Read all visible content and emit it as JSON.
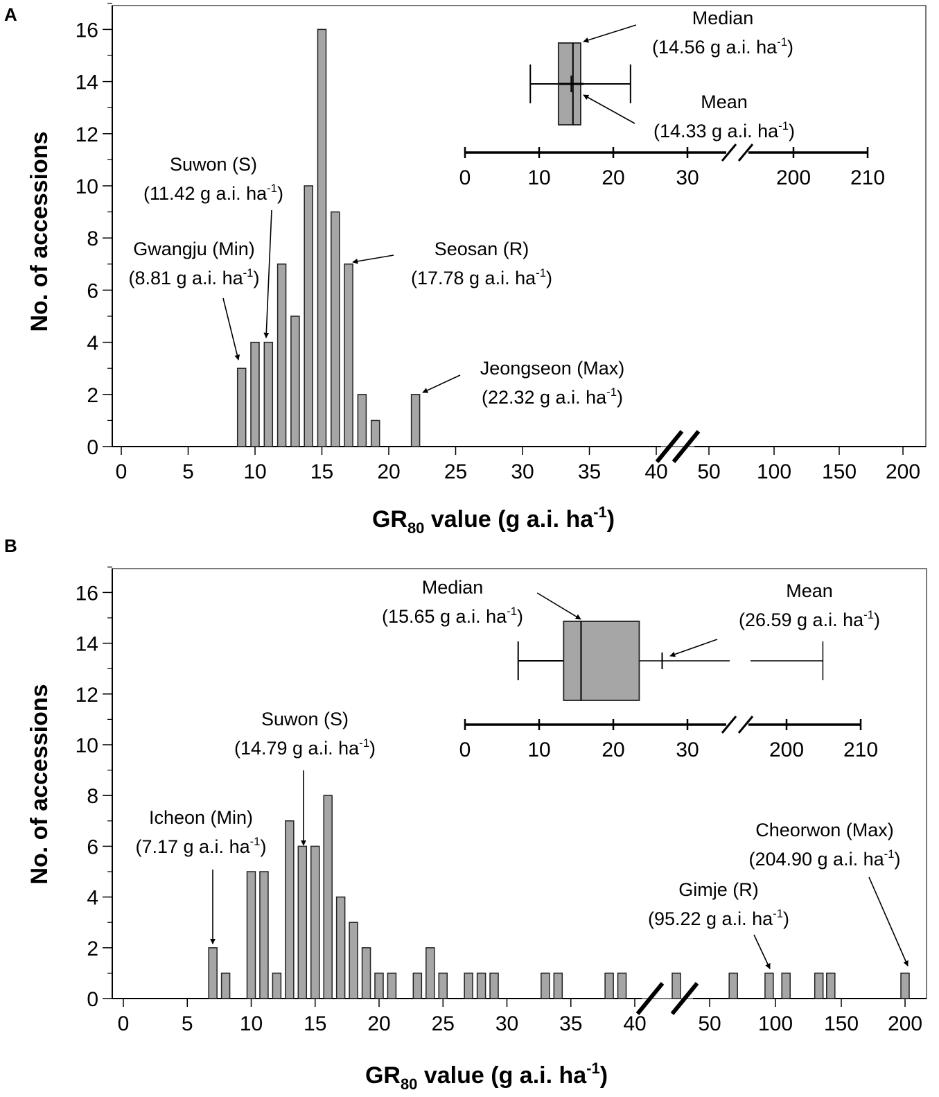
{
  "chart_data": [
    {
      "panel": "A",
      "type": "bar",
      "ylabel": "No. of accessions",
      "xlabel": {
        "base": "GR",
        "sub": "80",
        "rest": " value (g a.i. ha",
        "sup": "-1",
        "close": ")"
      },
      "ylim": [
        0,
        17
      ],
      "yticks": [
        0,
        2,
        4,
        6,
        8,
        10,
        12,
        14,
        16
      ],
      "xticks": [
        "0",
        "5",
        "10",
        "15",
        "20",
        "25",
        "30",
        "35",
        "40",
        "50",
        "100",
        "150",
        "200"
      ],
      "bars": [
        {
          "x": 9,
          "value": 3
        },
        {
          "x": 10,
          "value": 4
        },
        {
          "x": 11,
          "value": 4
        },
        {
          "x": 12,
          "value": 7
        },
        {
          "x": 13,
          "value": 5
        },
        {
          "x": 14,
          "value": 10
        },
        {
          "x": 15,
          "value": 16
        },
        {
          "x": 16,
          "value": 9
        },
        {
          "x": 17,
          "value": 7
        },
        {
          "x": 18,
          "value": 2
        },
        {
          "x": 19,
          "value": 1
        },
        {
          "x": 22,
          "value": 2
        }
      ],
      "annotations": [
        {
          "name": "Gwangju (Min)",
          "value": "(8.81 g a.i. ha",
          "sup": "-1",
          "close": ")"
        },
        {
          "name": "Suwon (S)",
          "value": "(11.42 g a.i. ha",
          "sup": "-1",
          "close": ")"
        },
        {
          "name": "Seosan (R)",
          "value": "(17.78 g a.i. ha",
          "sup": "-1",
          "close": ")"
        },
        {
          "name": "Jeongseon (Max)",
          "value": "(22.32 g a.i. ha",
          "sup": "-1",
          "close": ")"
        }
      ],
      "boxplot": {
        "min": 8.81,
        "q1": 12.6,
        "median": 14.56,
        "q3": 15.6,
        "max": 22.32,
        "mean": 14.33,
        "axis_ticks": [
          "0",
          "10",
          "20",
          "30",
          "200",
          "210"
        ],
        "median_label": "Median",
        "median_value": "(14.56 g a.i. ha",
        "median_sup": "-1",
        "median_close": ")",
        "mean_label": "Mean",
        "mean_value": "(14.33 g a.i. ha",
        "mean_sup": "-1",
        "mean_close": ")"
      }
    },
    {
      "panel": "B",
      "type": "bar",
      "ylabel": "No. of accessions",
      "xlabel": {
        "base": "GR",
        "sub": "80",
        "rest": " value (g a.i. ha",
        "sup": "-1",
        "close": ")"
      },
      "ylim": [
        0,
        17
      ],
      "yticks": [
        0,
        2,
        4,
        6,
        8,
        10,
        12,
        14,
        16
      ],
      "xticks": [
        "0",
        "5",
        "10",
        "15",
        "20",
        "25",
        "30",
        "35",
        "40",
        "50",
        "100",
        "150",
        "200"
      ],
      "bars": [
        {
          "x": 7,
          "value": 2
        },
        {
          "x": 8,
          "value": 1
        },
        {
          "x": 10,
          "value": 5
        },
        {
          "x": 11,
          "value": 5
        },
        {
          "x": 12,
          "value": 1
        },
        {
          "x": 13,
          "value": 7
        },
        {
          "x": 14,
          "value": 6
        },
        {
          "x": 15,
          "value": 6
        },
        {
          "x": 16,
          "value": 8
        },
        {
          "x": 17,
          "value": 4
        },
        {
          "x": 18,
          "value": 3
        },
        {
          "x": 19,
          "value": 2
        },
        {
          "x": 20,
          "value": 1
        },
        {
          "x": 21,
          "value": 1
        },
        {
          "x": 23,
          "value": 1
        },
        {
          "x": 24,
          "value": 2
        },
        {
          "x": 25,
          "value": 1
        },
        {
          "x": 27,
          "value": 1
        },
        {
          "x": 28,
          "value": 1
        },
        {
          "x": 29,
          "value": 1
        },
        {
          "x": 33,
          "value": 1
        },
        {
          "x": 34,
          "value": 1
        },
        {
          "x": 38,
          "value": 1
        },
        {
          "x": 39,
          "value": 1
        },
        {
          "x": 45,
          "value": 1
        },
        {
          "x": 68,
          "value": 1
        },
        {
          "x": 95.22,
          "value": 1
        },
        {
          "x": 108,
          "value": 1
        },
        {
          "x": 133,
          "value": 1
        },
        {
          "x": 142,
          "value": 1
        },
        {
          "x": 204.9,
          "value": 1
        }
      ],
      "annotations": [
        {
          "name": "Icheon (Min)",
          "value": "(7.17 g a.i. ha",
          "sup": "-1",
          "close": ")"
        },
        {
          "name": "Suwon (S)",
          "value": "(14.79 g a.i. ha",
          "sup": "-1",
          "close": ")"
        },
        {
          "name": "Gimje (R)",
          "value": "(95.22 g a.i. ha",
          "sup": "-1",
          "close": ")"
        },
        {
          "name": "Cheorwon (Max)",
          "value": "(204.90 g a.i. ha",
          "sup": "-1",
          "close": ")"
        }
      ],
      "boxplot": {
        "min": 7.17,
        "q1": 13.3,
        "median": 15.65,
        "q3": 23.5,
        "max": 204.9,
        "mean": 26.59,
        "axis_ticks": [
          "0",
          "10",
          "20",
          "30",
          "200",
          "210"
        ],
        "median_label": "Median",
        "median_value": "(15.65 g a.i. ha",
        "median_sup": "-1",
        "median_close": ")",
        "mean_label": "Mean",
        "mean_value": "(26.59 g a.i. ha",
        "mean_sup": "-1",
        "mean_close": ")"
      }
    }
  ],
  "panel_labels": [
    "A",
    "B"
  ]
}
